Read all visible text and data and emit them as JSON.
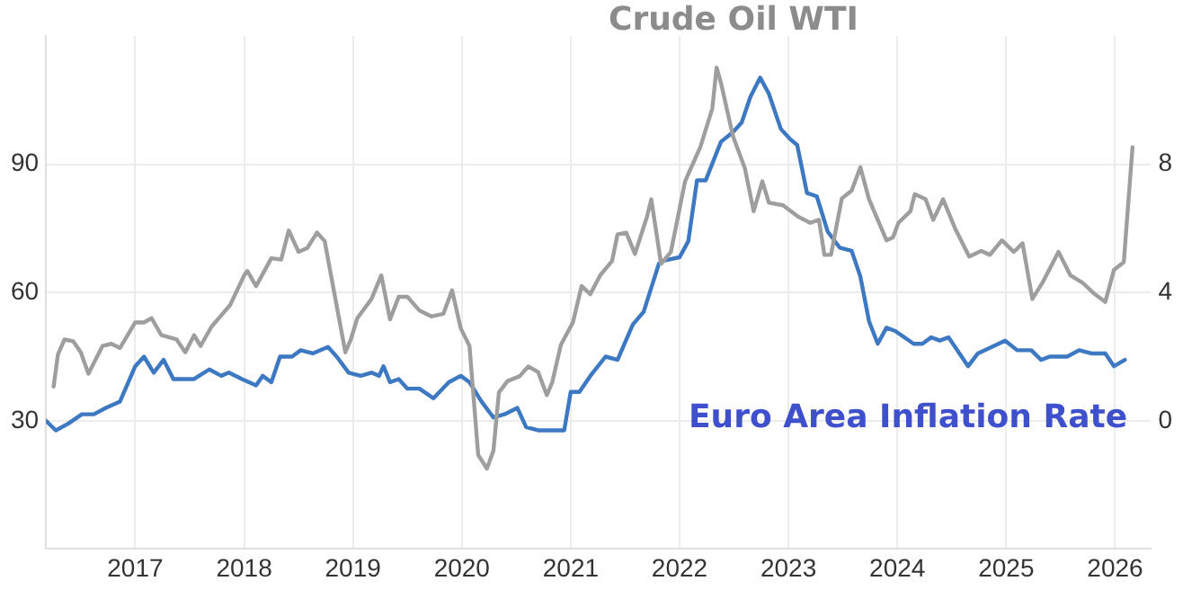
{
  "chart_data": {
    "type": "line",
    "xlim": [
      2016.18,
      2026.33
    ],
    "xticks": [
      2017,
      2018,
      2019,
      2020,
      2021,
      2022,
      2023,
      2024,
      2025,
      2026
    ],
    "ylim": [
      0,
      120
    ],
    "yticks": [
      30,
      60,
      90
    ],
    "y2lim": [
      -4,
      12
    ],
    "y2ticks": [
      0,
      4,
      8
    ],
    "grid": true,
    "legend": false,
    "marker": "none",
    "line_style": "solid",
    "series": [
      {
        "name": "Crude Oil WTI",
        "color": "#9e9e9e",
        "x": [
          2016.25,
          2016.29,
          2016.35,
          2016.43,
          2016.5,
          2016.57,
          2016.7,
          2016.78,
          2016.86,
          2017.0,
          2017.08,
          2017.15,
          2017.24,
          2017.38,
          2017.46,
          2017.54,
          2017.6,
          2017.7,
          2017.87,
          2018.0,
          2018.03,
          2018.11,
          2018.25,
          2018.34,
          2018.41,
          2018.5,
          2018.58,
          2018.67,
          2018.74,
          2018.82,
          2018.93,
          2018.98,
          2019.04,
          2019.17,
          2019.26,
          2019.34,
          2019.42,
          2019.5,
          2019.61,
          2019.72,
          2019.83,
          2019.91,
          2019.99,
          2020.07,
          2020.15,
          2020.23,
          2020.29,
          2020.34,
          2020.42,
          2020.53,
          2020.61,
          2020.7,
          2020.78,
          2020.83,
          2020.91,
          2021.02,
          2021.1,
          2021.18,
          2021.27,
          2021.38,
          2021.43,
          2021.51,
          2021.59,
          2021.7,
          2021.74,
          2021.83,
          2021.92,
          2022.05,
          2022.19,
          2022.3,
          2022.34,
          2022.38,
          2022.49,
          2022.6,
          2022.68,
          2022.76,
          2022.82,
          2022.95,
          2023.09,
          2023.2,
          2023.28,
          2023.33,
          2023.39,
          2023.49,
          2023.58,
          2023.66,
          2023.74,
          2023.9,
          2023.96,
          2024.01,
          2024.12,
          2024.16,
          2024.26,
          2024.33,
          2024.42,
          2024.53,
          2024.66,
          2024.77,
          2024.85,
          2024.96,
          2025.07,
          2025.15,
          2025.24,
          2025.34,
          2025.48,
          2025.59,
          2025.7,
          2025.8,
          2025.91,
          2025.99,
          2026.08,
          2026.16
        ],
        "values": [
          38,
          45.5,
          49,
          48.6,
          46,
          41,
          47.5,
          48,
          47,
          53,
          53,
          54,
          50,
          49,
          46,
          50,
          47.5,
          52,
          57,
          64,
          65,
          61.5,
          68,
          67.7,
          74.5,
          69.5,
          70.4,
          74,
          72,
          61,
          46,
          49,
          54,
          58.5,
          64,
          53.7,
          59,
          59,
          55.8,
          54.4,
          55,
          60.5,
          51.6,
          47.5,
          22,
          18.8,
          23,
          36.6,
          39.3,
          40.4,
          42.7,
          41.4,
          36,
          39,
          47.8,
          53,
          61.5,
          59.6,
          64,
          67.4,
          73.6,
          74,
          69,
          77.7,
          81.8,
          66.7,
          69.5,
          86,
          94,
          103,
          112.6,
          109,
          96.6,
          89,
          79,
          86,
          81,
          80.4,
          77.7,
          76.3,
          77,
          68.8,
          68.8,
          82,
          83.8,
          89.3,
          81.8,
          72.2,
          72.9,
          76.3,
          79,
          83,
          81.8,
          77,
          81.8,
          75,
          68.4,
          69.7,
          68.8,
          72.2,
          69.5,
          71.5,
          58.5,
          62.6,
          69.5,
          64,
          62.3,
          59.9,
          57.8,
          65.3,
          67.1,
          94
        ]
      },
      {
        "name": "Euro Area Inflation Rate",
        "color": "#3d79c2",
        "axis": "y2",
        "x": [
          2016.18,
          2016.27,
          2016.38,
          2016.51,
          2016.62,
          2016.73,
          2016.86,
          2017.0,
          2017.08,
          2017.17,
          2017.26,
          2017.35,
          2017.54,
          2017.68,
          2017.79,
          2017.86,
          2017.98,
          2018.11,
          2018.17,
          2018.25,
          2018.33,
          2018.44,
          2018.52,
          2018.63,
          2018.77,
          2018.85,
          2018.96,
          2019.07,
          2019.17,
          2019.24,
          2019.28,
          2019.34,
          2019.42,
          2019.5,
          2019.61,
          2019.74,
          2019.88,
          2019.99,
          2020.07,
          2020.18,
          2020.29,
          2020.39,
          2020.51,
          2020.59,
          2020.7,
          2020.94,
          2021.0,
          2021.08,
          2021.18,
          2021.32,
          2021.43,
          2021.57,
          2021.67,
          2021.81,
          2021.86,
          2022.0,
          2022.08,
          2022.16,
          2022.24,
          2022.38,
          2022.49,
          2022.57,
          2022.65,
          2022.74,
          2022.82,
          2022.93,
          2023.01,
          2023.08,
          2023.17,
          2023.26,
          2023.36,
          2023.47,
          2023.58,
          2023.66,
          2023.74,
          2023.82,
          2023.9,
          2023.98,
          2024.15,
          2024.23,
          2024.31,
          2024.39,
          2024.47,
          2024.65,
          2024.74,
          2024.99,
          2025.1,
          2025.23,
          2025.32,
          2025.4,
          2025.56,
          2025.67,
          2025.78,
          2025.91,
          2025.99,
          2026.09
        ],
        "values": [
          0,
          -0.3,
          -0.1,
          0.2,
          0.2,
          0.4,
          0.6,
          1.7,
          2.0,
          1.5,
          1.9,
          1.3,
          1.3,
          1.6,
          1.4,
          1.5,
          1.3,
          1.1,
          1.4,
          1.2,
          2.0,
          2.0,
          2.2,
          2.1,
          2.3,
          2.0,
          1.5,
          1.4,
          1.5,
          1.4,
          1.7,
          1.2,
          1.3,
          1.0,
          1.0,
          0.7,
          1.2,
          1.4,
          1.2,
          0.6,
          0.1,
          0.2,
          0.4,
          -0.2,
          -0.3,
          -0.3,
          0.9,
          0.9,
          1.4,
          2.0,
          1.9,
          3.0,
          3.4,
          4.9,
          5.0,
          5.1,
          5.6,
          7.5,
          7.5,
          8.7,
          9.0,
          9.3,
          10.1,
          10.7,
          10.2,
          9.1,
          8.8,
          8.6,
          7.1,
          7.0,
          5.9,
          5.4,
          5.3,
          4.5,
          3.1,
          2.4,
          2.9,
          2.8,
          2.4,
          2.4,
          2.6,
          2.5,
          2.6,
          1.7,
          2.1,
          2.5,
          2.2,
          2.2,
          1.9,
          2.0,
          2.0,
          2.2,
          2.1,
          2.1,
          1.7,
          1.9
        ]
      }
    ]
  }
}
